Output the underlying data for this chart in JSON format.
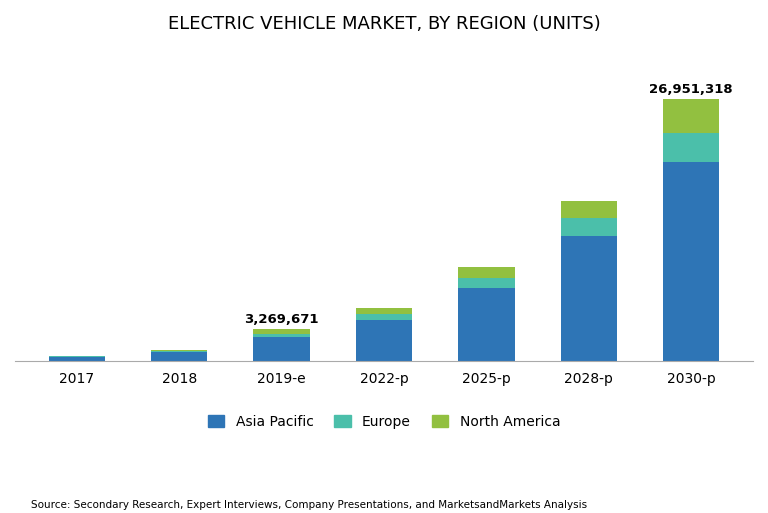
{
  "title": "ELECTRIC VEHICLE MARKET, BY REGION (UNITS)",
  "categories": [
    "2017",
    "2018",
    "2019-e",
    "2022-p",
    "2025-p",
    "2028-p",
    "2030-p"
  ],
  "asia_pacific": [
    380000,
    900000,
    2450000,
    4200000,
    7500000,
    12800000,
    20400000
  ],
  "europe": [
    45000,
    110000,
    290000,
    600000,
    1050000,
    1900000,
    3000000
  ],
  "north_america": [
    45000,
    110000,
    529671,
    600000,
    1050000,
    1700000,
    3551318
  ],
  "color_asia": "#2E75B6",
  "color_europe": "#4BBFAA",
  "color_na": "#92C040",
  "annotations": {
    "2019-e": "3,269,671",
    "2030-p": "26,951,318"
  },
  "legend_labels": [
    "Asia Pacific",
    "Europe",
    "North America"
  ],
  "source_text": "Source: Secondary Research, Expert Interviews, Company Presentations, and MarketsandMarkets Analysis",
  "background_color": "#FFFFFF",
  "ylim": [
    0,
    32000000
  ]
}
